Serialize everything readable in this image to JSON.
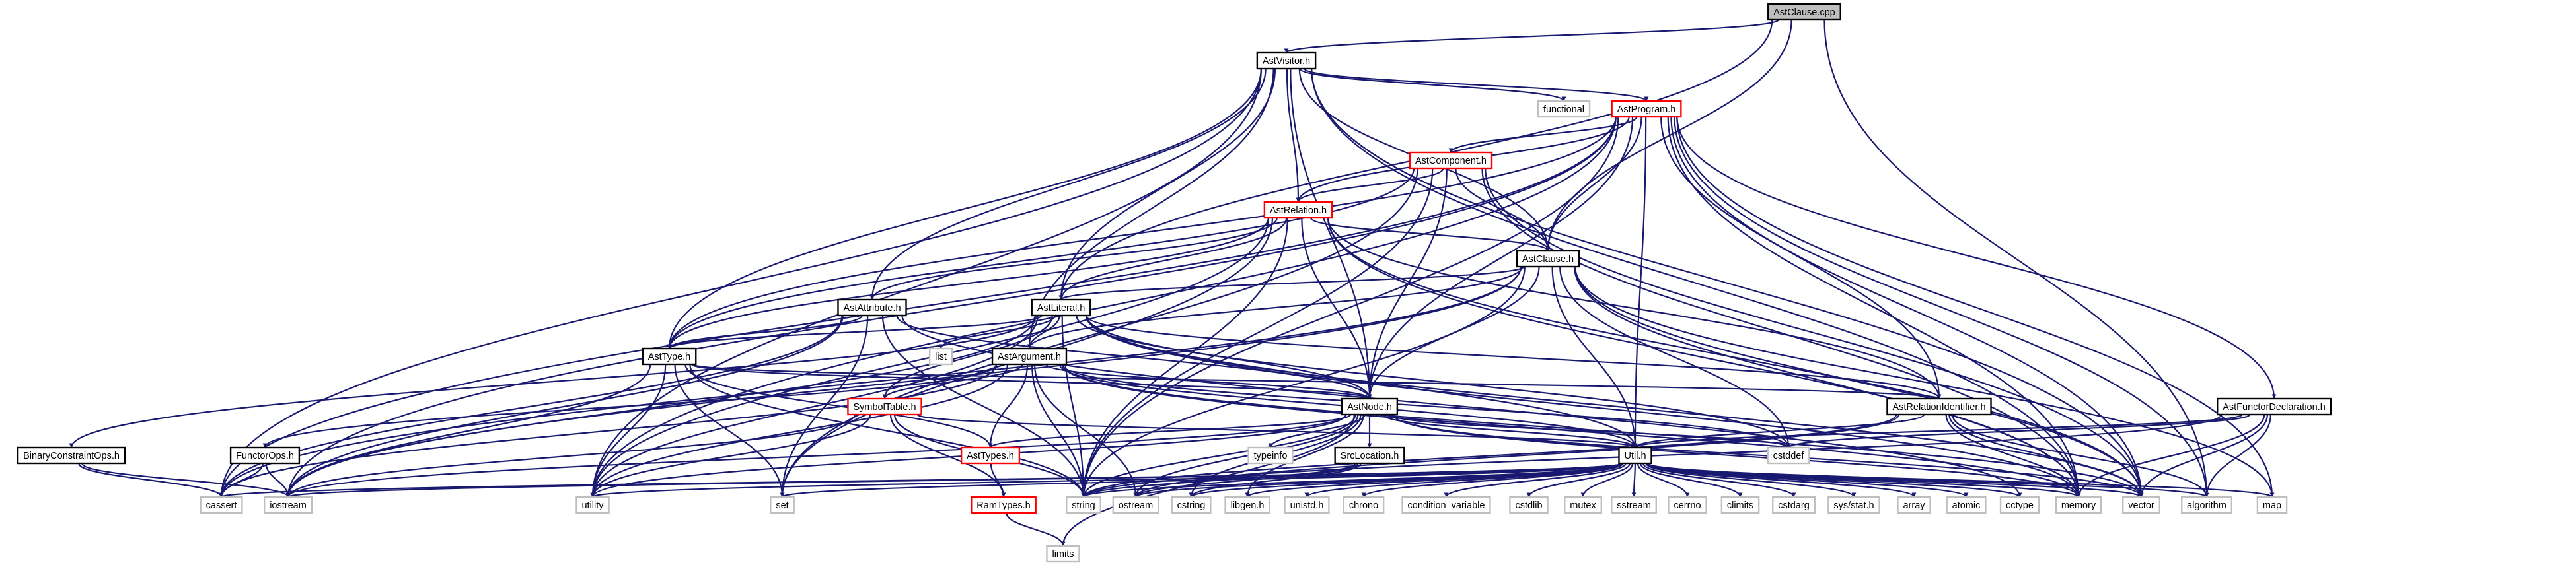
{
  "diagram": {
    "colors": {
      "edge": "#191970",
      "node_black_border": "#000000",
      "node_red_border": "#ff0000",
      "node_gray_border": "#bfbfbf",
      "root_fill": "#bfbfbf",
      "node_fill": "#ffffff",
      "text": "#000000"
    },
    "nodes": [
      {
        "id": "astclause_cpp",
        "label": "AstClause.cpp",
        "style": "root"
      },
      {
        "id": "astvisitor",
        "label": "AstVisitor.h",
        "style": "black"
      },
      {
        "id": "functional",
        "label": "functional",
        "style": "gray"
      },
      {
        "id": "astprogram",
        "label": "AstProgram.h",
        "style": "red"
      },
      {
        "id": "astcomponent",
        "label": "AstComponent.h",
        "style": "red"
      },
      {
        "id": "astrelation",
        "label": "AstRelation.h",
        "style": "red"
      },
      {
        "id": "astclause",
        "label": "AstClause.h",
        "style": "black"
      },
      {
        "id": "astattribute",
        "label": "AstAttribute.h",
        "style": "black"
      },
      {
        "id": "astliteral",
        "label": "AstLiteral.h",
        "style": "black"
      },
      {
        "id": "list",
        "label": "list",
        "style": "gray"
      },
      {
        "id": "asttype",
        "label": "AstType.h",
        "style": "black"
      },
      {
        "id": "astargument",
        "label": "AstArgument.h",
        "style": "black"
      },
      {
        "id": "symboltable",
        "label": "SymbolTable.h",
        "style": "red"
      },
      {
        "id": "astnode",
        "label": "AstNode.h",
        "style": "black"
      },
      {
        "id": "astrelid",
        "label": "AstRelationIdentifier.h",
        "style": "black"
      },
      {
        "id": "astfunctordecl",
        "label": "AstFunctorDeclaration.h",
        "style": "black"
      },
      {
        "id": "binaryconstraintops",
        "label": "BinaryConstraintOps.h",
        "style": "black"
      },
      {
        "id": "functorops",
        "label": "FunctorOps.h",
        "style": "black"
      },
      {
        "id": "asttypes",
        "label": "AstTypes.h",
        "style": "red"
      },
      {
        "id": "typeinfo",
        "label": "typeinfo",
        "style": "gray"
      },
      {
        "id": "srclocation",
        "label": "SrcLocation.h",
        "style": "black"
      },
      {
        "id": "util",
        "label": "Util.h",
        "style": "black"
      },
      {
        "id": "cstddef",
        "label": "cstddef",
        "style": "gray"
      },
      {
        "id": "ramtypes",
        "label": "RamTypes.h",
        "style": "red"
      },
      {
        "id": "limits",
        "label": "limits",
        "style": "gray"
      },
      {
        "id": "cassert",
        "label": "cassert",
        "style": "gray"
      },
      {
        "id": "iostream",
        "label": "iostream",
        "style": "gray"
      },
      {
        "id": "utility",
        "label": "utility",
        "style": "gray"
      },
      {
        "id": "set",
        "label": "set",
        "style": "gray"
      },
      {
        "id": "string",
        "label": "string",
        "style": "gray"
      },
      {
        "id": "ostream",
        "label": "ostream",
        "style": "gray"
      },
      {
        "id": "cstring",
        "label": "cstring",
        "style": "gray"
      },
      {
        "id": "libgen",
        "label": "libgen.h",
        "style": "gray"
      },
      {
        "id": "unistd",
        "label": "unistd.h",
        "style": "gray"
      },
      {
        "id": "chrono",
        "label": "chrono",
        "style": "gray"
      },
      {
        "id": "condvar",
        "label": "condition_variable",
        "style": "gray"
      },
      {
        "id": "cstdlib",
        "label": "cstdlib",
        "style": "gray"
      },
      {
        "id": "mutex",
        "label": "mutex",
        "style": "gray"
      },
      {
        "id": "sstream",
        "label": "sstream",
        "style": "gray"
      },
      {
        "id": "cerrno",
        "label": "cerrno",
        "style": "gray"
      },
      {
        "id": "climits",
        "label": "climits",
        "style": "gray"
      },
      {
        "id": "cstdarg",
        "label": "cstdarg",
        "style": "gray"
      },
      {
        "id": "sysstat",
        "label": "sys/stat.h",
        "style": "gray"
      },
      {
        "id": "array",
        "label": "array",
        "style": "gray"
      },
      {
        "id": "atomic",
        "label": "atomic",
        "style": "gray"
      },
      {
        "id": "cctype",
        "label": "cctype",
        "style": "gray"
      },
      {
        "id": "memory",
        "label": "memory",
        "style": "gray"
      },
      {
        "id": "vector",
        "label": "vector",
        "style": "gray"
      },
      {
        "id": "algorithm",
        "label": "algorithm",
        "style": "gray"
      },
      {
        "id": "map",
        "label": "map",
        "style": "gray"
      }
    ],
    "edges": [
      [
        "astclause_cpp",
        "astvisitor"
      ],
      [
        "astclause_cpp",
        "astclause"
      ],
      [
        "astclause_cpp",
        "astliteral"
      ],
      [
        "astclause_cpp",
        "algorithm"
      ],
      [
        "astvisitor",
        "functional"
      ],
      [
        "astvisitor",
        "astprogram"
      ],
      [
        "astvisitor",
        "astrelation"
      ],
      [
        "astvisitor",
        "astclause"
      ],
      [
        "astvisitor",
        "astattribute"
      ],
      [
        "astvisitor",
        "astliteral"
      ],
      [
        "astvisitor",
        "asttype"
      ],
      [
        "astvisitor",
        "astargument"
      ],
      [
        "astvisitor",
        "astnode"
      ],
      [
        "astvisitor",
        "vector"
      ],
      [
        "astvisitor",
        "memory"
      ],
      [
        "astvisitor",
        "utility"
      ],
      [
        "astvisitor",
        "cassert"
      ],
      [
        "astprogram",
        "astcomponent"
      ],
      [
        "astprogram",
        "astrelation"
      ],
      [
        "astprogram",
        "astclause"
      ],
      [
        "astprogram",
        "astfunctordecl"
      ],
      [
        "astprogram",
        "astrelid"
      ],
      [
        "astprogram",
        "asttype"
      ],
      [
        "astprogram",
        "astnode"
      ],
      [
        "astprogram",
        "util"
      ],
      [
        "astprogram",
        "map"
      ],
      [
        "astprogram",
        "vector"
      ],
      [
        "astprogram",
        "memory"
      ],
      [
        "astprogram",
        "string"
      ],
      [
        "astprogram",
        "cassert"
      ],
      [
        "astprogram",
        "iostream"
      ],
      [
        "astprogram",
        "algorithm"
      ],
      [
        "astprogram",
        "utility"
      ],
      [
        "astcomponent",
        "astrelation"
      ],
      [
        "astcomponent",
        "astclause"
      ],
      [
        "astcomponent",
        "asttype"
      ],
      [
        "astcomponent",
        "astnode"
      ],
      [
        "astcomponent",
        "string"
      ],
      [
        "astcomponent",
        "memory"
      ],
      [
        "astcomponent",
        "vector"
      ],
      [
        "astcomponent",
        "set"
      ],
      [
        "astrelation",
        "astclause"
      ],
      [
        "astrelation",
        "astattribute"
      ],
      [
        "astrelation",
        "astrelid"
      ],
      [
        "astrelation",
        "astnode"
      ],
      [
        "astrelation",
        "asttype"
      ],
      [
        "astrelation",
        "astliteral"
      ],
      [
        "astrelation",
        "string"
      ],
      [
        "astrelation",
        "vector"
      ],
      [
        "astrelation",
        "memory"
      ],
      [
        "astrelation",
        "utility"
      ],
      [
        "astrelation",
        "set"
      ],
      [
        "astclause",
        "astliteral"
      ],
      [
        "astclause",
        "astnode"
      ],
      [
        "astclause",
        "astargument"
      ],
      [
        "astclause",
        "util"
      ],
      [
        "astclause",
        "cstddef"
      ],
      [
        "astclause",
        "string"
      ],
      [
        "astclause",
        "vector"
      ],
      [
        "astclause",
        "memory"
      ],
      [
        "astclause",
        "map"
      ],
      [
        "astclause",
        "iostream"
      ],
      [
        "astclause",
        "cassert"
      ],
      [
        "astattribute",
        "asttype"
      ],
      [
        "astattribute",
        "astnode"
      ],
      [
        "astattribute",
        "set"
      ],
      [
        "astattribute",
        "string"
      ],
      [
        "astattribute",
        "iostream"
      ],
      [
        "astattribute",
        "cassert"
      ],
      [
        "astattribute",
        "cctype"
      ],
      [
        "astliteral",
        "astargument"
      ],
      [
        "astliteral",
        "astnode"
      ],
      [
        "astliteral",
        "asttype"
      ],
      [
        "astliteral",
        "astrelid"
      ],
      [
        "astliteral",
        "list"
      ],
      [
        "astliteral",
        "binaryconstraintops"
      ],
      [
        "astliteral",
        "symboltable"
      ],
      [
        "astliteral",
        "util"
      ],
      [
        "astliteral",
        "cstddef"
      ],
      [
        "astliteral",
        "string"
      ],
      [
        "astliteral",
        "vector"
      ],
      [
        "astliteral",
        "memory"
      ],
      [
        "astliteral",
        "iostream"
      ],
      [
        "astliteral",
        "utility"
      ],
      [
        "asttype",
        "astnode"
      ],
      [
        "asttype",
        "astrelid"
      ],
      [
        "asttype",
        "asttypes"
      ],
      [
        "asttype",
        "set"
      ],
      [
        "asttype",
        "string"
      ],
      [
        "asttype",
        "iostream"
      ],
      [
        "asttype",
        "utility"
      ],
      [
        "astargument",
        "astnode"
      ],
      [
        "astargument",
        "asttypes"
      ],
      [
        "astargument",
        "functorops"
      ],
      [
        "astargument",
        "symboltable"
      ],
      [
        "astargument",
        "util"
      ],
      [
        "astargument",
        "cstddef"
      ],
      [
        "astargument",
        "string"
      ],
      [
        "astargument",
        "vector"
      ],
      [
        "astargument",
        "memory"
      ],
      [
        "astargument",
        "ostream"
      ],
      [
        "astargument",
        "cassert"
      ],
      [
        "astargument",
        "utility"
      ],
      [
        "symboltable",
        "ramtypes"
      ],
      [
        "symboltable",
        "util"
      ],
      [
        "symboltable",
        "string"
      ],
      [
        "symboltable",
        "iostream"
      ],
      [
        "symboltable",
        "utility"
      ],
      [
        "astnode",
        "srclocation"
      ],
      [
        "astnode",
        "typeinfo"
      ],
      [
        "astnode",
        "util"
      ],
      [
        "astnode",
        "asttypes"
      ],
      [
        "astnode",
        "cstddef"
      ],
      [
        "astnode",
        "vector"
      ],
      [
        "astnode",
        "memory"
      ],
      [
        "astnode",
        "string"
      ],
      [
        "astnode",
        "ostream"
      ],
      [
        "astnode",
        "limits"
      ],
      [
        "astnode",
        "iostream"
      ],
      [
        "astnode",
        "utility"
      ],
      [
        "astnode",
        "cstring"
      ],
      [
        "astnode",
        "libgen"
      ],
      [
        "astrelid",
        "util"
      ],
      [
        "astrelid",
        "string"
      ],
      [
        "astrelid",
        "vector"
      ],
      [
        "astrelid",
        "memory"
      ],
      [
        "astrelid",
        "algorithm"
      ],
      [
        "astrelid",
        "ostream"
      ],
      [
        "astfunctordecl",
        "util"
      ],
      [
        "astfunctordecl",
        "cstddef"
      ],
      [
        "astfunctordecl",
        "string"
      ],
      [
        "astfunctordecl",
        "vector"
      ],
      [
        "astfunctordecl",
        "algorithm"
      ],
      [
        "astfunctordecl",
        "memory"
      ],
      [
        "binaryconstraintops",
        "cassert"
      ],
      [
        "binaryconstraintops",
        "iostream"
      ],
      [
        "functorops",
        "cassert"
      ],
      [
        "functorops",
        "iostream"
      ],
      [
        "asttypes",
        "ramtypes"
      ],
      [
        "srclocation",
        "string"
      ],
      [
        "srclocation",
        "ostream"
      ],
      [
        "srclocation",
        "cstring"
      ],
      [
        "ramtypes",
        "limits"
      ],
      [
        "util",
        "cassert"
      ],
      [
        "util",
        "iostream"
      ],
      [
        "util",
        "utility"
      ],
      [
        "util",
        "set"
      ],
      [
        "util",
        "string"
      ],
      [
        "util",
        "ostream"
      ],
      [
        "util",
        "cstring"
      ],
      [
        "util",
        "libgen"
      ],
      [
        "util",
        "unistd"
      ],
      [
        "util",
        "chrono"
      ],
      [
        "util",
        "condvar"
      ],
      [
        "util",
        "cstdlib"
      ],
      [
        "util",
        "mutex"
      ],
      [
        "util",
        "sstream"
      ],
      [
        "util",
        "cerrno"
      ],
      [
        "util",
        "climits"
      ],
      [
        "util",
        "cstdarg"
      ],
      [
        "util",
        "sysstat"
      ],
      [
        "util",
        "array"
      ],
      [
        "util",
        "atomic"
      ],
      [
        "util",
        "cctype"
      ],
      [
        "util",
        "memory"
      ],
      [
        "util",
        "vector"
      ],
      [
        "util",
        "algorithm"
      ],
      [
        "util",
        "map"
      ]
    ]
  }
}
